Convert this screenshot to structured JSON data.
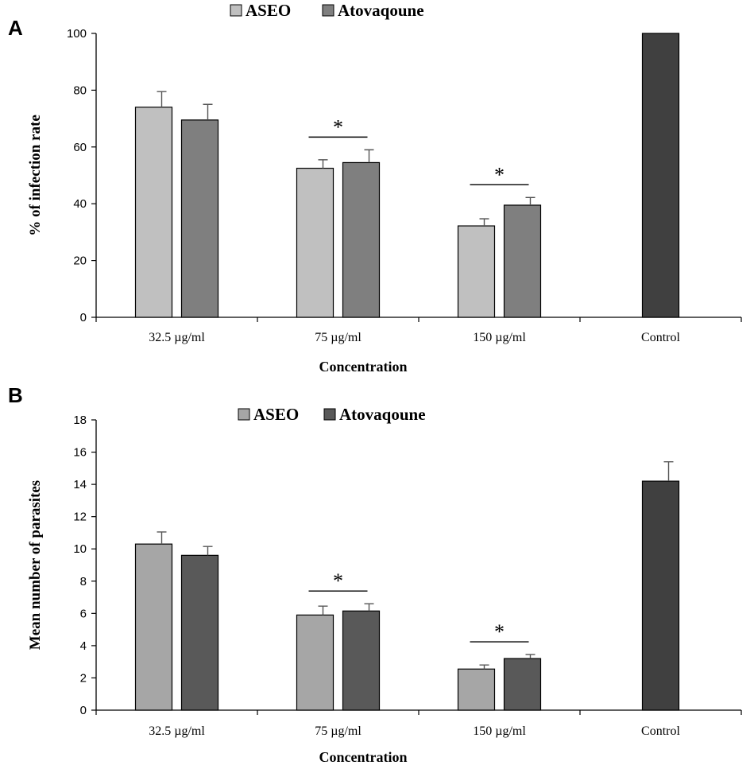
{
  "chart_data": [
    {
      "panel_label": "A",
      "type": "bar",
      "categories": [
        "32.5 µg/ml",
        "75 µg/ml",
        "150 µg/ml",
        "Control"
      ],
      "series": [
        {
          "name": "ASEO",
          "values": [
            74,
            52.5,
            32.2,
            null
          ],
          "errors": [
            5.5,
            3,
            2.5,
            null
          ],
          "color": "#c0c0c0"
        },
        {
          "name": "Atovaqoune",
          "values": [
            69.5,
            54.5,
            39.5,
            null
          ],
          "errors": [
            5.5,
            4.5,
            2.7,
            null
          ],
          "color": "#7f7f7f"
        },
        {
          "name": "",
          "values": [
            null,
            null,
            null,
            100
          ],
          "errors": [
            null,
            null,
            null,
            0
          ],
          "color": "#404040"
        }
      ],
      "significance": [
        "",
        "*",
        "*",
        ""
      ],
      "xlabel": "Concentration",
      "ylabel": "% of infection rate",
      "ylim": [
        0,
        100
      ],
      "yticks": [
        0,
        20,
        40,
        60,
        80,
        100
      ],
      "legend": "top-center",
      "grid": false
    },
    {
      "panel_label": "B",
      "type": "bar",
      "categories": [
        "32.5 µg/ml",
        "75 µg/ml",
        "150 µg/ml",
        "Control"
      ],
      "series": [
        {
          "name": "ASEO",
          "values": [
            10.3,
            5.9,
            2.55,
            null
          ],
          "errors": [
            0.75,
            0.55,
            0.25,
            null
          ],
          "color": "#a6a6a6"
        },
        {
          "name": "Atovaqoune",
          "values": [
            9.6,
            6.15,
            3.2,
            null
          ],
          "errors": [
            0.55,
            0.45,
            0.25,
            null
          ],
          "color": "#595959"
        },
        {
          "name": "",
          "values": [
            null,
            null,
            null,
            14.2
          ],
          "errors": [
            null,
            null,
            null,
            1.2
          ],
          "color": "#404040"
        }
      ],
      "significance": [
        "",
        "*",
        "*",
        ""
      ],
      "xlabel": "Concentration",
      "ylabel": "Mean number of parasites",
      "ylim": [
        0,
        18
      ],
      "yticks": [
        0,
        2,
        4,
        6,
        8,
        10,
        12,
        14,
        16,
        18
      ],
      "legend": "top-center",
      "grid": false
    }
  ]
}
